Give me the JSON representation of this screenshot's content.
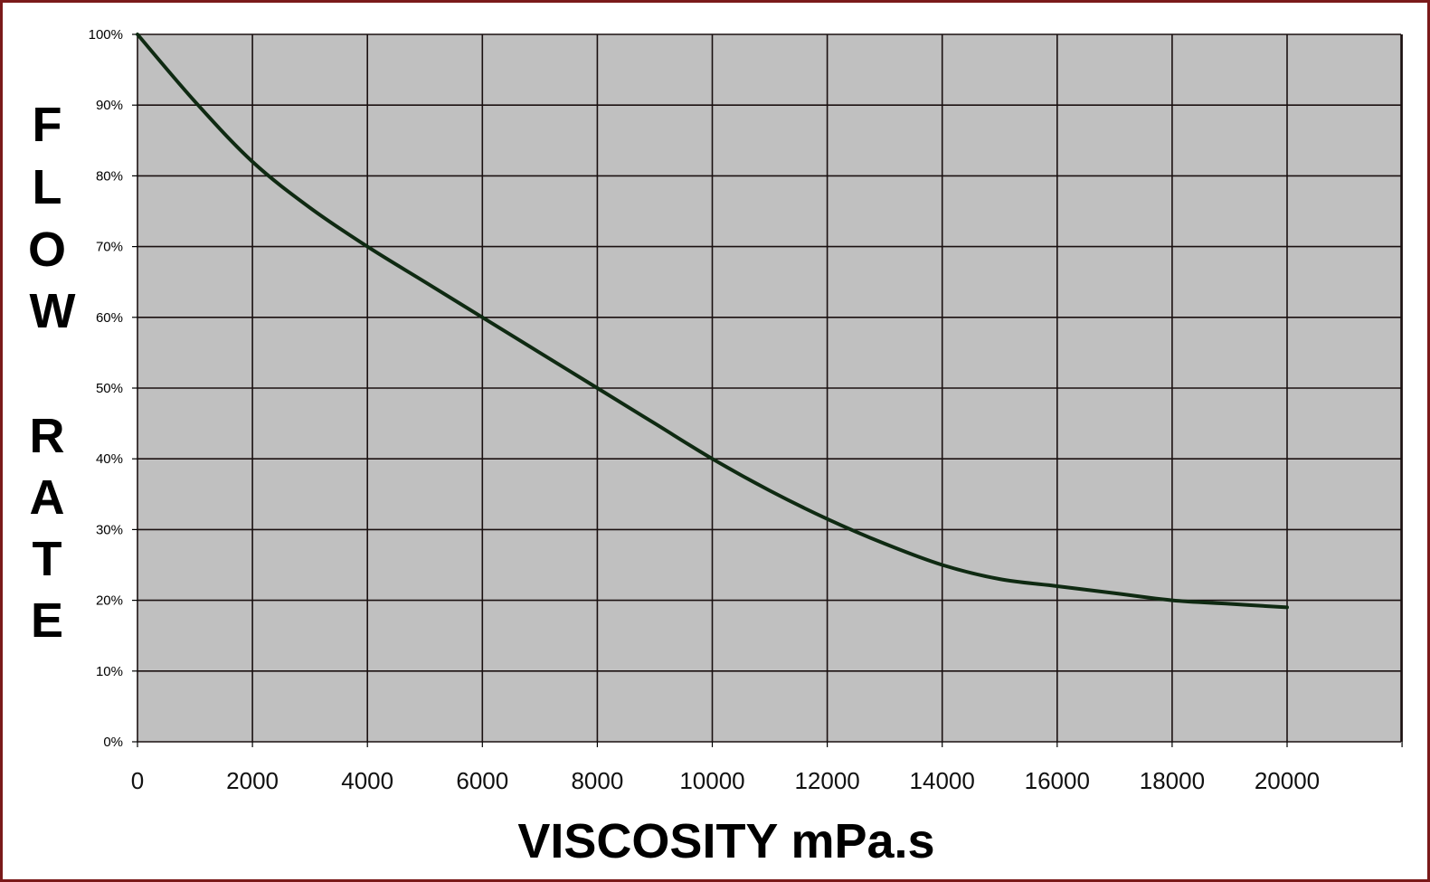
{
  "chart_data": {
    "type": "line",
    "title": "",
    "xlabel": "VISCOSITY mPa.s",
    "ylabel": "FLOW RATE",
    "xlim": [
      0,
      22000
    ],
    "ylim": [
      0,
      100
    ],
    "x_ticks": [
      "0",
      "2000",
      "4000",
      "6000",
      "8000",
      "10000",
      "12000",
      "14000",
      "16000",
      "18000",
      "20000"
    ],
    "y_ticks": [
      "0%",
      "10%",
      "20%",
      "30%",
      "40%",
      "50%",
      "60%",
      "70%",
      "80%",
      "90%",
      "100%"
    ],
    "grid": true,
    "legend": "none",
    "series": [
      {
        "x": [
          0,
          1000,
          2000,
          3000,
          4000,
          5000,
          6000,
          7000,
          8000,
          9000,
          10000,
          11000,
          12000,
          13000,
          14000,
          15000,
          16000,
          17000,
          18000,
          19000,
          20000
        ],
        "y": [
          100,
          90.5,
          82,
          75.5,
          70,
          65,
          60,
          55,
          50,
          45,
          40,
          35.5,
          31.5,
          28,
          25,
          23,
          22,
          21,
          20,
          19.5,
          19
        ]
      }
    ],
    "colors": {
      "plot_background": "#c0c0c0",
      "grid": "#1a1010",
      "line": "#0f2a12",
      "frame_border": "#7a1a1a"
    }
  }
}
